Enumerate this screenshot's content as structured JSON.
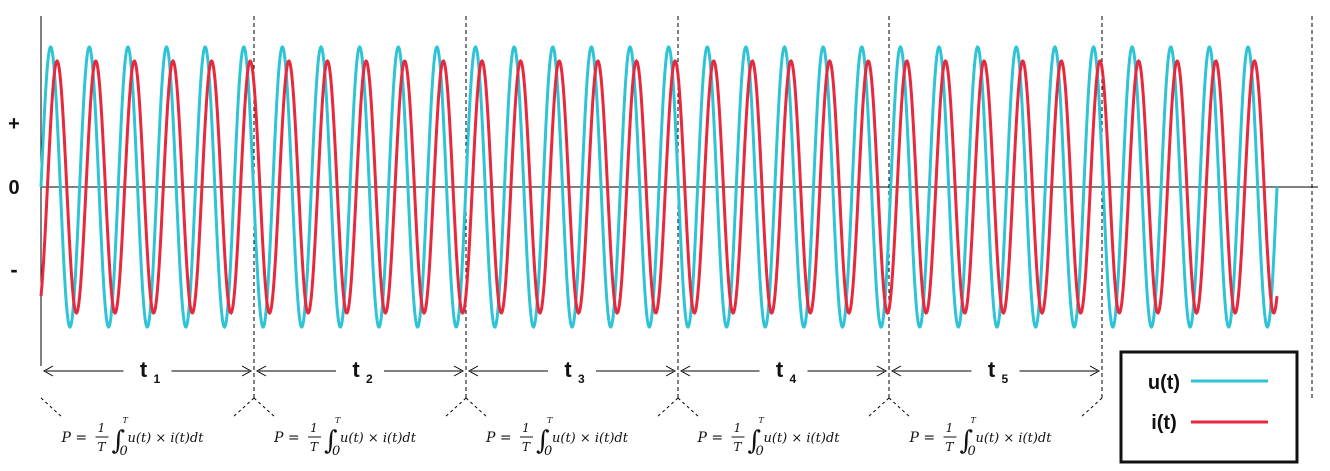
{
  "chart_data": {
    "type": "line",
    "y_labels": {
      "plus": "+",
      "zero": "0",
      "minus": "-"
    },
    "series": [
      {
        "name": "u(t)",
        "color": "#2ec4d6",
        "amplitude": 1.0,
        "phase_deg": 0,
        "cycles": 32
      },
      {
        "name": "i(t)",
        "color": "#e8283c",
        "amplitude": 0.9,
        "phase_deg": -60,
        "cycles": 32
      }
    ],
    "intervals": [
      {
        "label": "t",
        "sub": "1"
      },
      {
        "label": "t",
        "sub": "2"
      },
      {
        "label": "t",
        "sub": "3"
      },
      {
        "label": "t",
        "sub": "4"
      },
      {
        "label": "t",
        "sub": "5"
      }
    ],
    "formula": {
      "prefix": "P =",
      "num": "1",
      "den": "T",
      "upper": "T",
      "lower": "0",
      "body": "u(t) × i(t)dt"
    },
    "legend": {
      "position": "bottom-right",
      "items": [
        {
          "label": "u(t)",
          "color": "#2ec4d6"
        },
        {
          "label": "i(t)",
          "color": "#e8283c"
        }
      ]
    }
  }
}
